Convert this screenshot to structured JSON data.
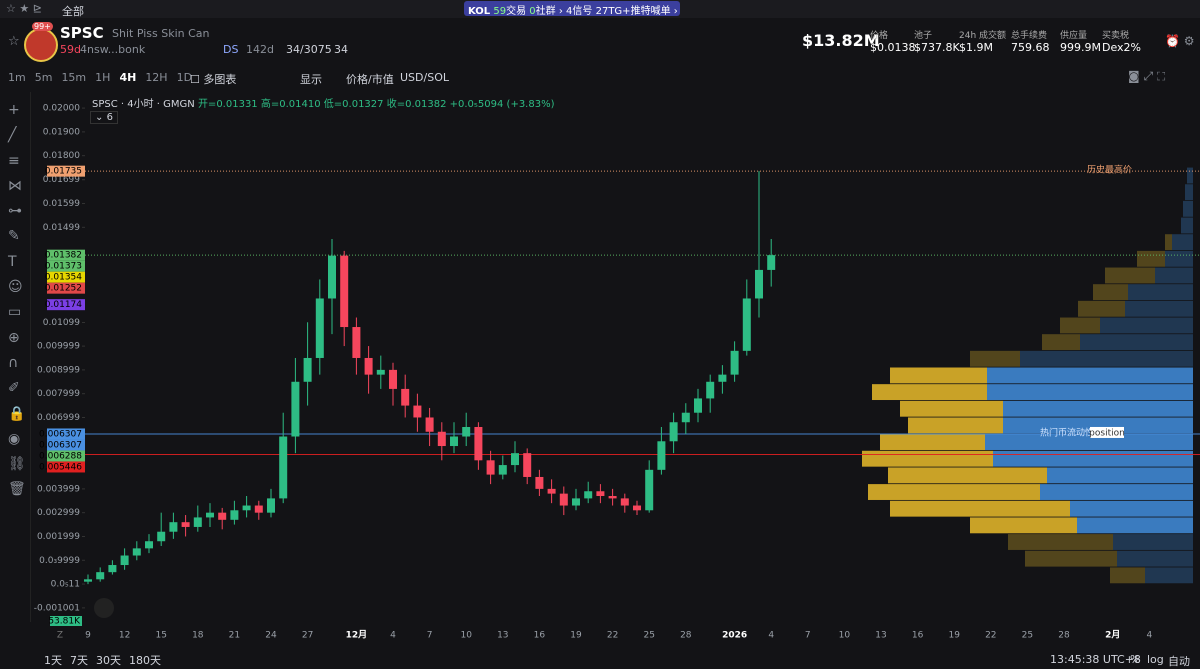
{
  "topbar": {
    "filter": "全部",
    "kol": "KOL",
    "kol_trades": "59",
    "trades_label": "交易",
    "kol_community": "0",
    "community_label": "社群",
    "signals": "4",
    "signals_label": "信号",
    "tg": "27",
    "tg_label": "TG+推特喊单"
  },
  "token": {
    "symbol": "SPSC",
    "name": "Shit Piss Skin Can",
    "badge": "99+",
    "age": "59d",
    "dev": "4nsw...bonk",
    "ds": "DS",
    "ds_age": "142d",
    "holders": "34/3075",
    "watchers": "34"
  },
  "stats": {
    "market_cap": "$13.82M",
    "items": [
      {
        "label": "价格",
        "value": "$0.0138"
      },
      {
        "label": "池子",
        "value": "$737.8K"
      },
      {
        "label": "24h 成交额",
        "value": "$1.9M"
      },
      {
        "label": "总手续费",
        "value": "759.68"
      },
      {
        "label": "供应量",
        "value": "999.9M"
      },
      {
        "label": "买卖税",
        "value": "Dex2%"
      }
    ]
  },
  "toolbar": {
    "intervals": [
      "1m",
      "5m",
      "15m",
      "1H",
      "4H",
      "12H",
      "1D"
    ],
    "active": "4H",
    "multi": "多图表",
    "display": "显示",
    "price_mcap": "价格/市值",
    "currency": "USD/SOL"
  },
  "legend": {
    "title": "SPSC · 4小时 · GMGN",
    "open": "开=0.01331",
    "high": "高=0.01410",
    "low": "低=0.01327",
    "close": "收=0.01382",
    "change": "+0.0₅5094 (+3.83%)",
    "indicators": "6"
  },
  "chart": {
    "type": "candlestick",
    "ylim": [
      -0.00172,
      0.02055
    ],
    "yticks": [
      {
        "value": 0.02,
        "label": "0.02000"
      },
      {
        "value": 0.019,
        "label": "0.01900"
      },
      {
        "value": 0.018,
        "label": "0.01800"
      },
      {
        "value": 0.01699,
        "label": "0.01699"
      },
      {
        "value": 0.01599,
        "label": "0.01599"
      },
      {
        "value": 0.01499,
        "label": "0.01499"
      },
      {
        "value": 0.01099,
        "label": "0.01099"
      },
      0.009999,
      0.008999,
      0.007999,
      0.006999,
      0.003999,
      0.002999,
      0.001999,
      {
        "value": 0.0009999,
        "label": "0.0₃9999"
      },
      {
        "value": 1.1e-06,
        "label": "0.0₅11"
      },
      -0.001001
    ],
    "x_labels": [
      "9",
      "12",
      "15",
      "18",
      "21",
      "24",
      "27",
      "12月",
      "4",
      "7",
      "10",
      "13",
      "16",
      "19",
      "22",
      "25",
      "28",
      "2026",
      "4",
      "7",
      "10",
      "13",
      "16",
      "19",
      "22",
      "25",
      "28",
      "2月",
      "4"
    ],
    "candles": [
      [
        0.0001,
        0.0004,
        0.0,
        0.0002
      ],
      [
        0.0002,
        0.0007,
        0.0001,
        0.0005
      ],
      [
        0.0005,
        0.001,
        0.0004,
        0.0008
      ],
      [
        0.0008,
        0.0015,
        0.0006,
        0.0012
      ],
      [
        0.0012,
        0.0018,
        0.001,
        0.0015
      ],
      [
        0.0015,
        0.0021,
        0.0013,
        0.0018
      ],
      [
        0.0018,
        0.003,
        0.0016,
        0.0022
      ],
      [
        0.0022,
        0.003,
        0.0019,
        0.0026
      ],
      [
        0.0026,
        0.0029,
        0.002,
        0.0024
      ],
      [
        0.0024,
        0.0033,
        0.0022,
        0.0028
      ],
      [
        0.0028,
        0.0034,
        0.0024,
        0.003
      ],
      [
        0.003,
        0.0032,
        0.0023,
        0.0027
      ],
      [
        0.0027,
        0.0035,
        0.0025,
        0.0031
      ],
      [
        0.0031,
        0.0037,
        0.0028,
        0.0033
      ],
      [
        0.0033,
        0.0035,
        0.0027,
        0.003
      ],
      [
        0.003,
        0.004,
        0.0028,
        0.0036
      ],
      [
        0.0036,
        0.0072,
        0.0034,
        0.0062
      ],
      [
        0.0062,
        0.0095,
        0.0055,
        0.0085
      ],
      [
        0.0085,
        0.011,
        0.0075,
        0.0095
      ],
      [
        0.0095,
        0.0128,
        0.0088,
        0.012
      ],
      [
        0.012,
        0.0145,
        0.0105,
        0.0138
      ],
      [
        0.0138,
        0.014,
        0.01,
        0.0108
      ],
      [
        0.0108,
        0.0112,
        0.0088,
        0.0095
      ],
      [
        0.0095,
        0.01,
        0.008,
        0.0088
      ],
      [
        0.0088,
        0.0096,
        0.0082,
        0.009
      ],
      [
        0.009,
        0.0093,
        0.0075,
        0.0082
      ],
      [
        0.0082,
        0.0088,
        0.007,
        0.0075
      ],
      [
        0.0075,
        0.008,
        0.0064,
        0.007
      ],
      [
        0.007,
        0.0074,
        0.0058,
        0.0064
      ],
      [
        0.0064,
        0.0068,
        0.0052,
        0.0058
      ],
      [
        0.0058,
        0.0068,
        0.0055,
        0.0062
      ],
      [
        0.0062,
        0.0072,
        0.0058,
        0.0066
      ],
      [
        0.0066,
        0.0068,
        0.0048,
        0.0052
      ],
      [
        0.0052,
        0.0056,
        0.0042,
        0.0046
      ],
      [
        0.0046,
        0.0054,
        0.0044,
        0.005
      ],
      [
        0.005,
        0.006,
        0.0047,
        0.0055
      ],
      [
        0.0055,
        0.0057,
        0.0042,
        0.0045
      ],
      [
        0.0045,
        0.0048,
        0.0037,
        0.004
      ],
      [
        0.004,
        0.0044,
        0.0034,
        0.0038
      ],
      [
        0.0038,
        0.0041,
        0.0029,
        0.0033
      ],
      [
        0.0033,
        0.004,
        0.0031,
        0.0036
      ],
      [
        0.0036,
        0.0043,
        0.0034,
        0.0039
      ],
      [
        0.0039,
        0.0042,
        0.0034,
        0.0037
      ],
      [
        0.0037,
        0.004,
        0.0033,
        0.0036
      ],
      [
        0.0036,
        0.0038,
        0.003,
        0.0033
      ],
      [
        0.0033,
        0.0035,
        0.0029,
        0.0031
      ],
      [
        0.0031,
        0.0052,
        0.003,
        0.0048
      ],
      [
        0.0048,
        0.0066,
        0.0046,
        0.006
      ],
      [
        0.006,
        0.0072,
        0.0055,
        0.0068
      ],
      [
        0.0068,
        0.0076,
        0.0063,
        0.0072
      ],
      [
        0.0072,
        0.0082,
        0.0068,
        0.0078
      ],
      [
        0.0078,
        0.0088,
        0.0072,
        0.0085
      ],
      [
        0.0085,
        0.0092,
        0.008,
        0.0088
      ],
      [
        0.0088,
        0.0102,
        0.0085,
        0.0098
      ],
      [
        0.0098,
        0.0128,
        0.0096,
        0.012
      ],
      [
        0.012,
        0.01735,
        0.0112,
        0.0132
      ],
      [
        0.0132,
        0.0145,
        0.0125,
        0.01382
      ]
    ],
    "up_color": "#2ebd85",
    "down_color": "#f6465d",
    "price_tags": [
      {
        "value": 0.01735,
        "color": "#f0a070",
        "line": "dotted"
      },
      {
        "value": 0.01382,
        "color": "#5fbf6a",
        "line": "dotted"
      },
      {
        "value": 0.01373,
        "color": "#5fbf6a"
      },
      {
        "value": 0.01354,
        "color": "#e6d600"
      },
      {
        "value": 0.01252,
        "color": "#e04848"
      },
      {
        "value": 0.01174,
        "color": "#7b3fe4"
      },
      {
        "value": 0.006307,
        "color": "#4a90e2",
        "line": "solid"
      },
      {
        "value": 0.006307,
        "color": "#4a90e2"
      },
      {
        "value": 0.006288,
        "color": "#5fbf6a"
      },
      {
        "value": 0.005446,
        "color": "#e02020",
        "line": "solid"
      }
    ],
    "ath_label": "历史最高价",
    "volume_label": "53.81K",
    "profile": {
      "bins": [
        0,
        0.0007,
        0.0014,
        0.0021,
        0.0028,
        0.0035,
        0.0042,
        0.0049,
        0.0056,
        0.0063,
        0.007,
        0.0077,
        0.0084,
        0.0091,
        0.0098,
        0.0105,
        0.0112,
        0.0119,
        0.0126,
        0.0133,
        0.014,
        0.0147,
        0.0154,
        0.0161,
        0.0168,
        0.0175
      ],
      "buy": [
        35,
        92,
        105,
        107,
        180,
        172,
        159,
        131,
        105,
        95,
        103,
        115,
        97,
        50,
        38,
        40,
        47,
        35,
        50,
        28,
        7,
        0,
        0,
        0,
        0
      ],
      "sell": [
        48,
        76,
        80,
        116,
        123,
        153,
        146,
        200,
        208,
        190,
        190,
        206,
        206,
        173,
        113,
        93,
        68,
        65,
        38,
        28,
        21,
        12,
        10,
        8,
        6
      ],
      "value_area": [
        0.0021,
        0.0091
      ],
      "buy_color": "#c9a227",
      "sell_color": "#3a7bbf",
      "label": "热门币流动性段",
      "tag": "position"
    }
  },
  "bottom": {
    "ranges": [
      "1天",
      "7天",
      "30天",
      "180天"
    ],
    "time": "13:45:38 UTC+8",
    "pct": "%",
    "log": "log",
    "auto": "自动"
  }
}
